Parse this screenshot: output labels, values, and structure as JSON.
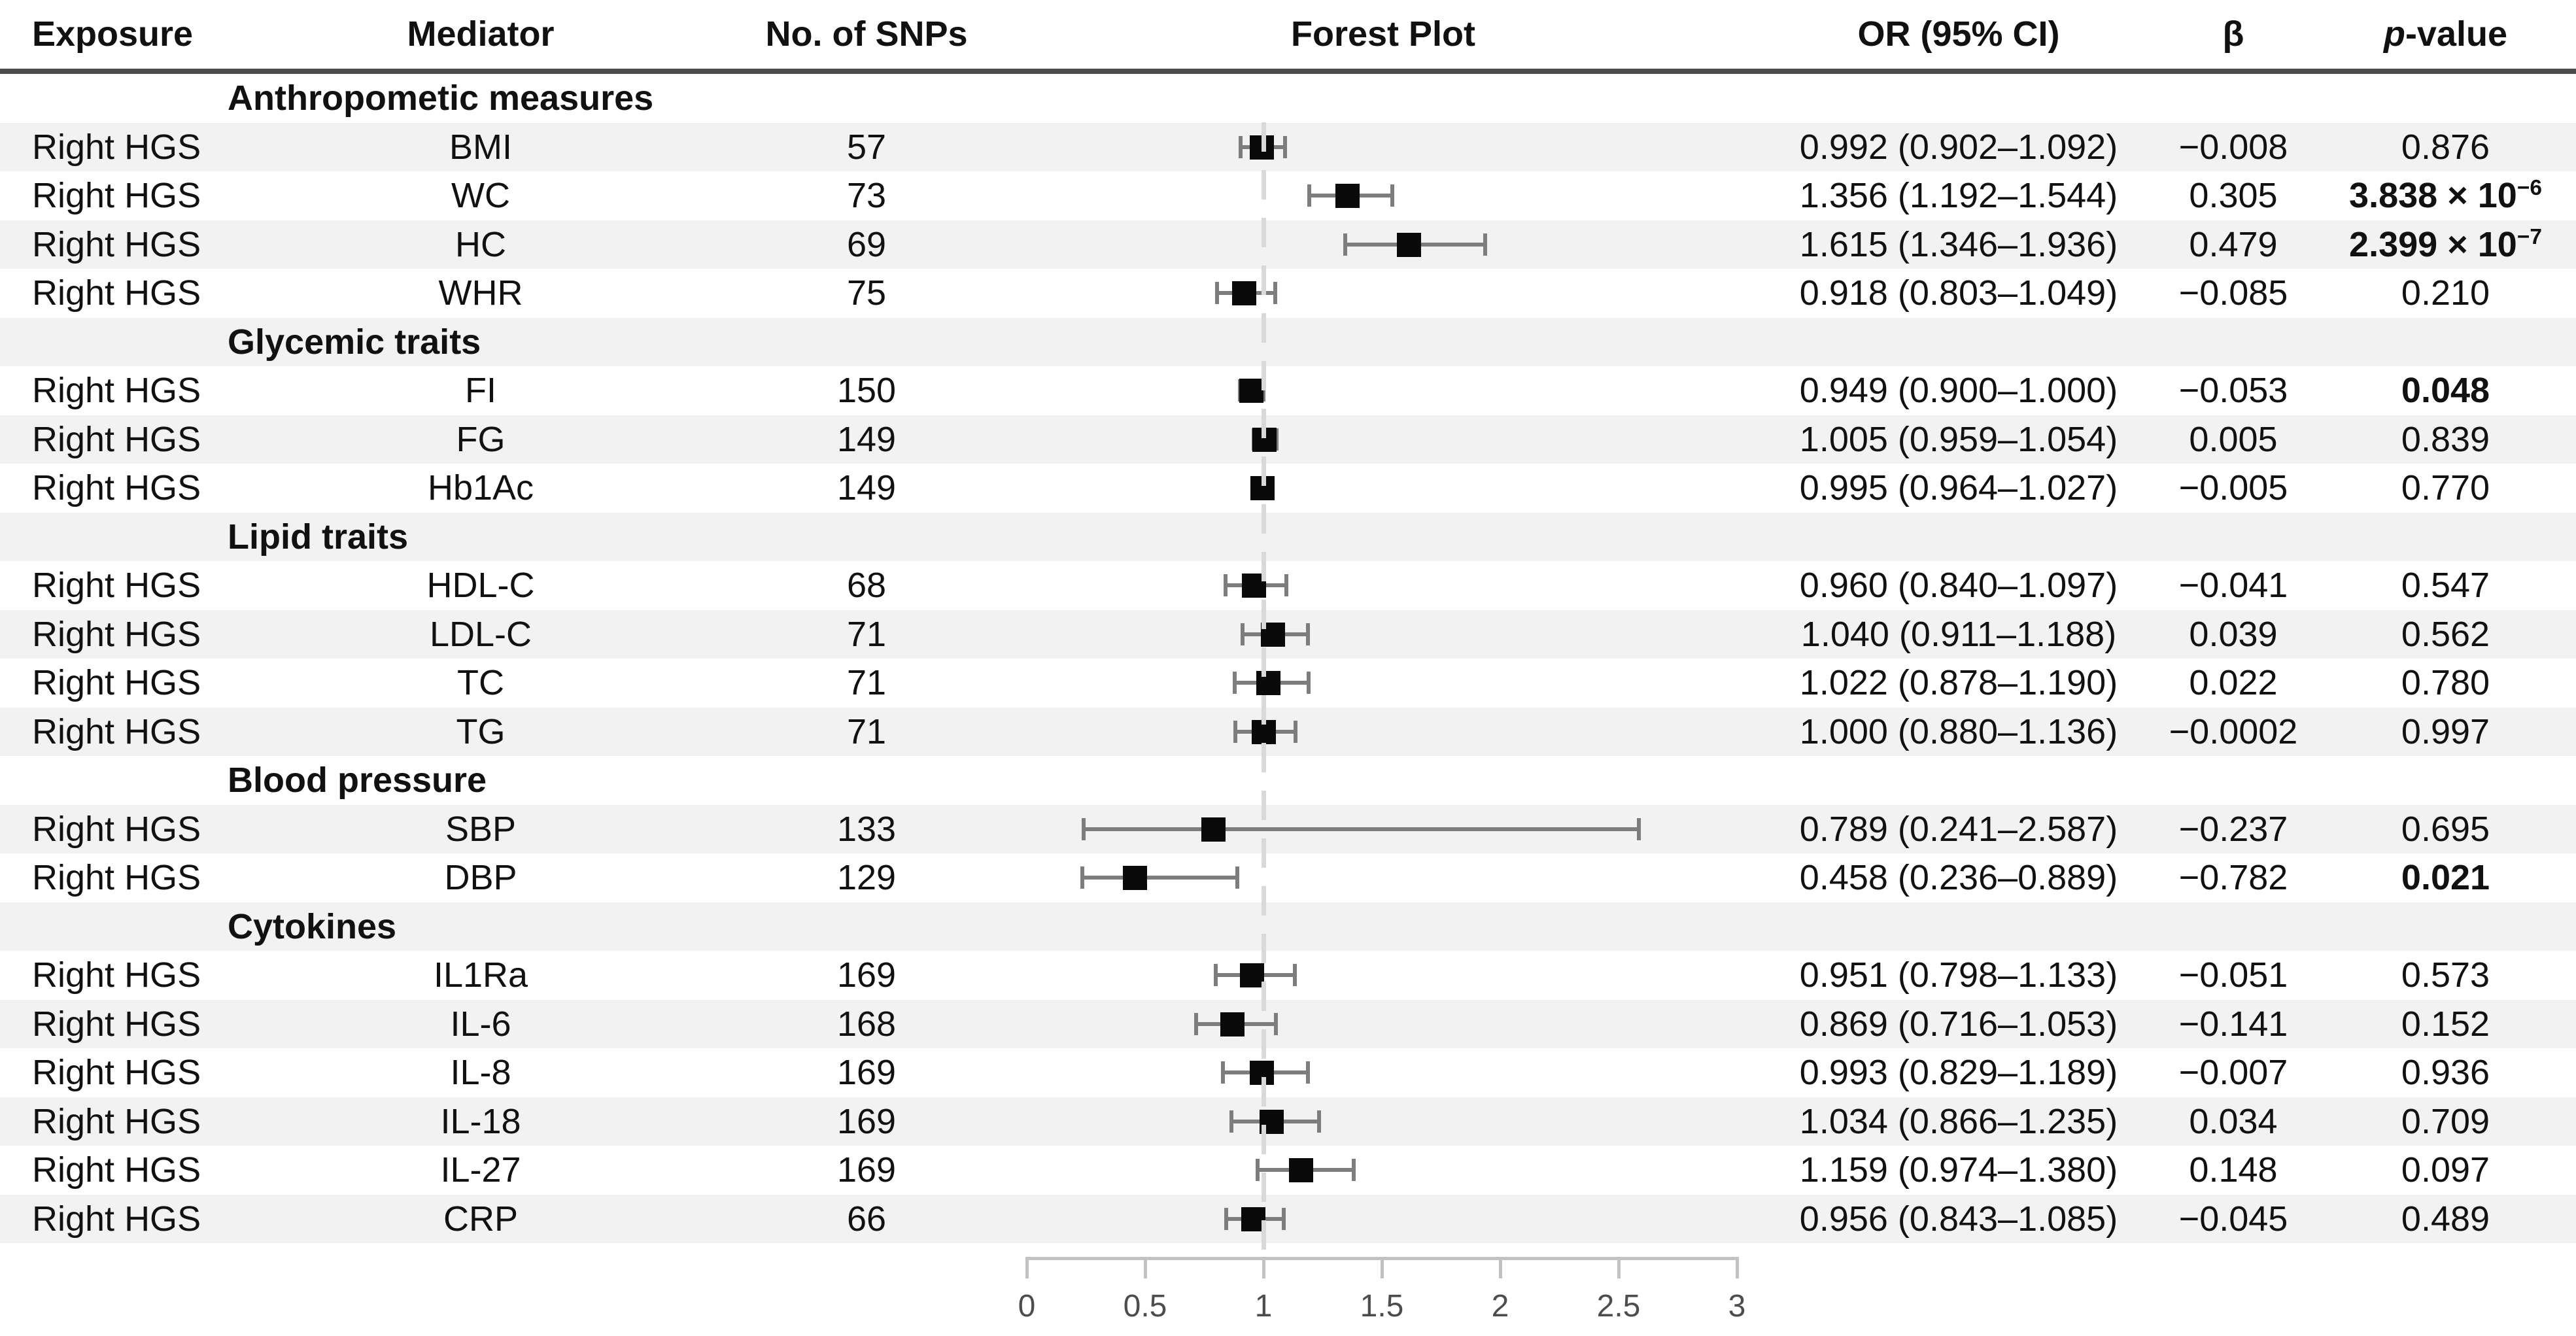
{
  "header": {
    "p_label_italic": "p",
    "p_label_rest": "-value"
  },
  "chart_data": {
    "type": "forest",
    "columns": [
      "Exposure",
      "Mediator",
      "No. of SNPs",
      "Forest Plot",
      "OR (95% CI)",
      "β",
      "p-value"
    ],
    "x_axis": {
      "min": 0,
      "max": 3,
      "ticks": [
        "0",
        "0.5",
        "1",
        "1.5",
        "2",
        "2.5",
        "3"
      ],
      "reference_line": 1
    },
    "groups": [
      {
        "label": "Anthropometic measures",
        "rows": [
          {
            "exposure": "Right HGS",
            "mediator": "BMI",
            "snps": "57",
            "or": 0.992,
            "ci_low": 0.902,
            "ci_high": 1.092,
            "or_text": "0.992 (0.902–1.092)",
            "beta": "−0.008",
            "p_base": "0.876",
            "p_sup": "",
            "p_bold": false
          },
          {
            "exposure": "Right HGS",
            "mediator": "WC",
            "snps": "73",
            "or": 1.356,
            "ci_low": 1.192,
            "ci_high": 1.544,
            "or_text": "1.356 (1.192–1.544)",
            "beta": "0.305",
            "p_base": "3.838 × 10",
            "p_sup": "−6",
            "p_bold": true
          },
          {
            "exposure": "Right HGS",
            "mediator": "HC",
            "snps": "69",
            "or": 1.615,
            "ci_low": 1.346,
            "ci_high": 1.936,
            "or_text": "1.615 (1.346–1.936)",
            "beta": "0.479",
            "p_base": "2.399 × 10",
            "p_sup": "−7",
            "p_bold": true
          },
          {
            "exposure": "Right HGS",
            "mediator": "WHR",
            "snps": "75",
            "or": 0.918,
            "ci_low": 0.803,
            "ci_high": 1.049,
            "or_text": "0.918 (0.803–1.049)",
            "beta": "−0.085",
            "p_base": "0.210",
            "p_sup": "",
            "p_bold": false
          }
        ]
      },
      {
        "label": "Glycemic traits",
        "rows": [
          {
            "exposure": "Right HGS",
            "mediator": "FI",
            "snps": "150",
            "or": 0.949,
            "ci_low": 0.9,
            "ci_high": 1.0,
            "or_text": "0.949 (0.900–1.000)",
            "beta": "−0.053",
            "p_base": "0.048",
            "p_sup": "",
            "p_bold": true
          },
          {
            "exposure": "Right HGS",
            "mediator": "FG",
            "snps": "149",
            "or": 1.005,
            "ci_low": 0.959,
            "ci_high": 1.054,
            "or_text": "1.005 (0.959–1.054)",
            "beta": "0.005",
            "p_base": "0.839",
            "p_sup": "",
            "p_bold": false
          },
          {
            "exposure": "Right HGS",
            "mediator": "Hb1Ac",
            "snps": "149",
            "or": 0.995,
            "ci_low": 0.964,
            "ci_high": 1.027,
            "or_text": "0.995 (0.964–1.027)",
            "beta": "−0.005",
            "p_base": "0.770",
            "p_sup": "",
            "p_bold": false
          }
        ]
      },
      {
        "label": "Lipid traits",
        "rows": [
          {
            "exposure": "Right HGS",
            "mediator": "HDL-C",
            "snps": "68",
            "or": 0.96,
            "ci_low": 0.84,
            "ci_high": 1.097,
            "or_text": "0.960 (0.840–1.097)",
            "beta": "−0.041",
            "p_base": "0.547",
            "p_sup": "",
            "p_bold": false
          },
          {
            "exposure": "Right HGS",
            "mediator": "LDL-C",
            "snps": "71",
            "or": 1.04,
            "ci_low": 0.911,
            "ci_high": 1.188,
            "or_text": "1.040 (0.911–1.188)",
            "beta": "0.039",
            "p_base": "0.562",
            "p_sup": "",
            "p_bold": false
          },
          {
            "exposure": "Right HGS",
            "mediator": "TC",
            "snps": "71",
            "or": 1.022,
            "ci_low": 0.878,
            "ci_high": 1.19,
            "or_text": "1.022 (0.878–1.190)",
            "beta": "0.022",
            "p_base": "0.780",
            "p_sup": "",
            "p_bold": false
          },
          {
            "exposure": "Right HGS",
            "mediator": "TG",
            "snps": "71",
            "or": 1.0,
            "ci_low": 0.88,
            "ci_high": 1.136,
            "or_text": "1.000 (0.880–1.136)",
            "beta": "−0.0002",
            "p_base": "0.997",
            "p_sup": "",
            "p_bold": false
          }
        ]
      },
      {
        "label": "Blood pressure",
        "rows": [
          {
            "exposure": "Right HGS",
            "mediator": "SBP",
            "snps": "133",
            "or": 0.789,
            "ci_low": 0.241,
            "ci_high": 2.587,
            "or_text": "0.789 (0.241–2.587)",
            "beta": "−0.237",
            "p_base": "0.695",
            "p_sup": "",
            "p_bold": false
          },
          {
            "exposure": "Right HGS",
            "mediator": "DBP",
            "snps": "129",
            "or": 0.458,
            "ci_low": 0.236,
            "ci_high": 0.889,
            "or_text": "0.458 (0.236–0.889)",
            "beta": "−0.782",
            "p_base": "0.021",
            "p_sup": "",
            "p_bold": true
          }
        ]
      },
      {
        "label": "Cytokines",
        "rows": [
          {
            "exposure": "Right HGS",
            "mediator": "IL1Ra",
            "snps": "169",
            "or": 0.951,
            "ci_low": 0.798,
            "ci_high": 1.133,
            "or_text": "0.951 (0.798–1.133)",
            "beta": "−0.051",
            "p_base": "0.573",
            "p_sup": "",
            "p_bold": false
          },
          {
            "exposure": "Right HGS",
            "mediator": "IL-6",
            "snps": "168",
            "or": 0.869,
            "ci_low": 0.716,
            "ci_high": 1.053,
            "or_text": "0.869 (0.716–1.053)",
            "beta": "−0.141",
            "p_base": "0.152",
            "p_sup": "",
            "p_bold": false
          },
          {
            "exposure": "Right HGS",
            "mediator": "IL-8",
            "snps": "169",
            "or": 0.993,
            "ci_low": 0.829,
            "ci_high": 1.189,
            "or_text": "0.993 (0.829–1.189)",
            "beta": "−0.007",
            "p_base": "0.936",
            "p_sup": "",
            "p_bold": false
          },
          {
            "exposure": "Right HGS",
            "mediator": "IL-18",
            "snps": "169",
            "or": 1.034,
            "ci_low": 0.866,
            "ci_high": 1.235,
            "or_text": "1.034 (0.866–1.235)",
            "beta": "0.034",
            "p_base": "0.709",
            "p_sup": "",
            "p_bold": false
          },
          {
            "exposure": "Right HGS",
            "mediator": "IL-27",
            "snps": "169",
            "or": 1.159,
            "ci_low": 0.974,
            "ci_high": 1.38,
            "or_text": "1.159 (0.974–1.380)",
            "beta": "0.148",
            "p_base": "0.097",
            "p_sup": "",
            "p_bold": false
          },
          {
            "exposure": "Right HGS",
            "mediator": "CRP",
            "snps": "66",
            "or": 0.956,
            "ci_low": 0.843,
            "ci_high": 1.085,
            "or_text": "0.956 (0.843–1.085)",
            "beta": "−0.045",
            "p_base": "0.489",
            "p_sup": "",
            "p_bold": false
          }
        ]
      }
    ]
  }
}
